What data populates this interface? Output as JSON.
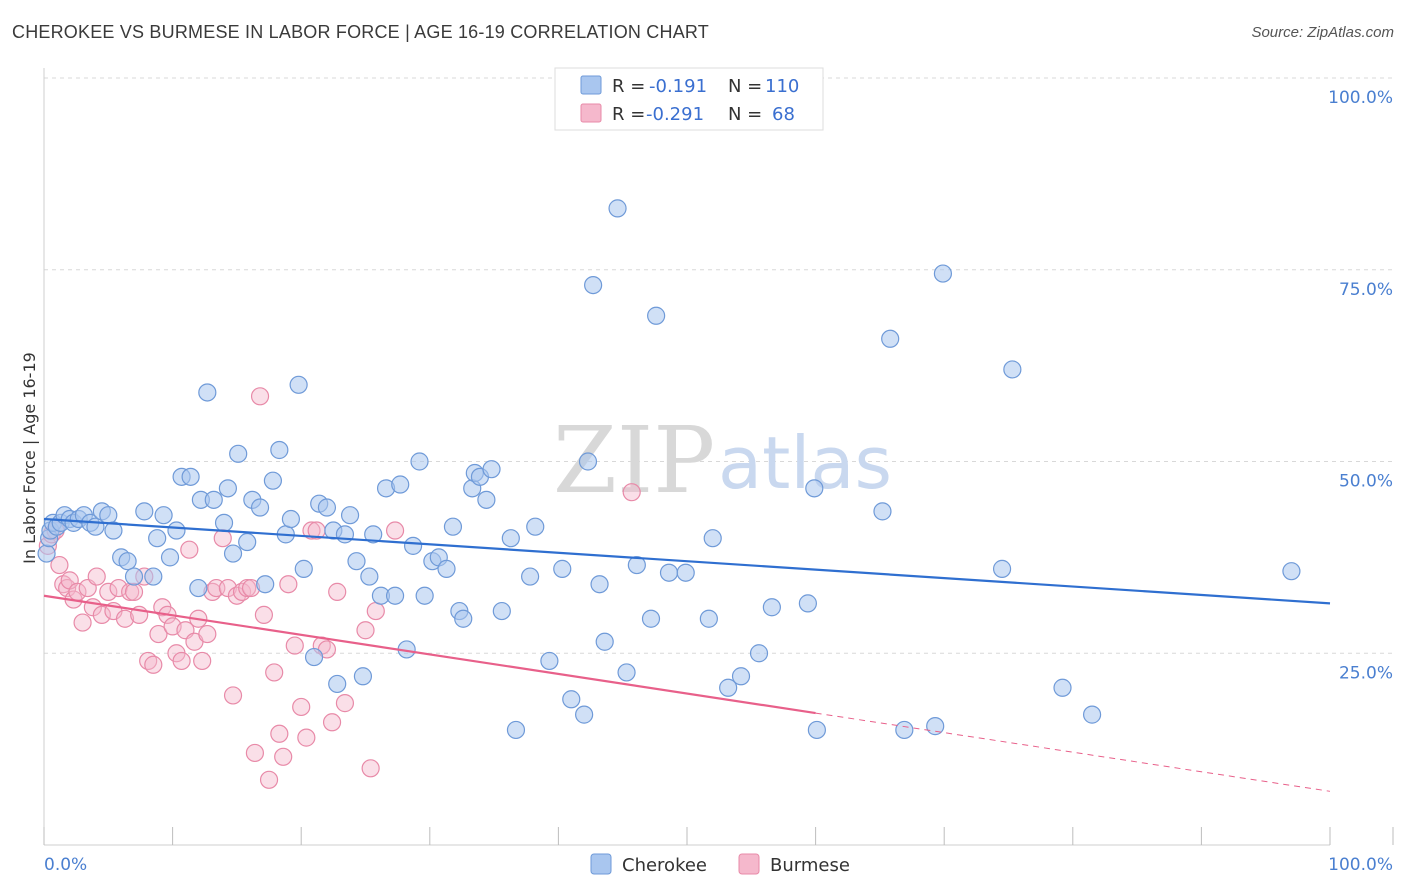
{
  "title": "CHEROKEE VS BURMESE IN LABOR FORCE | AGE 16-19 CORRELATION CHART",
  "source": "Source: ZipAtlas.com",
  "watermark": {
    "zip": "ZIP",
    "atlas": "atlas"
  },
  "legend_top": [
    {
      "r_label": "R =",
      "r_value": "-0.191",
      "n_label": "N =",
      "n_value": "110"
    },
    {
      "r_label": "R =",
      "r_value": "-0.291",
      "n_label": "N =",
      "n_value": "68"
    }
  ],
  "legend_bottom": [
    "Cherokee",
    "Burmese"
  ],
  "colors": {
    "cherokee_fill": "#a9c6ef",
    "cherokee_stroke": "#6f9ad8",
    "cherokee_line": "#2f6fd0",
    "burmese_fill": "#f5b8cc",
    "burmese_stroke": "#e88aa8",
    "burmese_line": "#e8608a",
    "tick_text": "#4a7fd0",
    "grid": "#d8d8d8"
  },
  "chart_data": {
    "type": "scatter",
    "title": "CHEROKEE VS BURMESE IN LABOR FORCE | AGE 16-19 CORRELATION CHART",
    "xlabel": "",
    "ylabel": "In Labor Force | Age 16-19",
    "xlim": [
      0,
      100
    ],
    "ylim": [
      0,
      100
    ],
    "x_tick_labels": [
      "0.0%",
      "100.0%"
    ],
    "y_ticks": [
      25,
      50,
      75,
      100
    ],
    "y_tick_labels": [
      "25.0%",
      "50.0%",
      "75.0%",
      "100.0%"
    ],
    "grid": true,
    "legend_position": "top-center",
    "series": [
      {
        "name": "Cherokee",
        "r": -0.191,
        "n": 110,
        "trend": {
          "x": [
            0,
            100
          ],
          "y": [
            42.5,
            31.5
          ]
        },
        "points": [
          [
            0.2,
            38
          ],
          [
            0.4,
            40
          ],
          [
            0.5,
            41
          ],
          [
            0.7,
            42
          ],
          [
            1.0,
            41.5
          ],
          [
            1.3,
            42
          ],
          [
            1.6,
            43
          ],
          [
            2.0,
            42.5
          ],
          [
            2.3,
            42
          ],
          [
            2.7,
            42.5
          ],
          [
            3.1,
            43
          ],
          [
            3.6,
            42
          ],
          [
            4.0,
            41.5
          ],
          [
            4.5,
            43.5
          ],
          [
            5.0,
            43
          ],
          [
            5.4,
            41
          ],
          [
            6.0,
            37.5
          ],
          [
            6.5,
            37
          ],
          [
            7.0,
            35
          ],
          [
            7.8,
            43.5
          ],
          [
            8.5,
            35
          ],
          [
            8.8,
            40
          ],
          [
            9.3,
            43
          ],
          [
            9.8,
            37.5
          ],
          [
            10.3,
            41
          ],
          [
            10.7,
            48
          ],
          [
            11.4,
            48
          ],
          [
            12.0,
            33.5
          ],
          [
            12.2,
            45
          ],
          [
            12.7,
            59
          ],
          [
            13.2,
            45
          ],
          [
            14.0,
            42
          ],
          [
            14.3,
            46.5
          ],
          [
            14.7,
            38
          ],
          [
            15.1,
            51
          ],
          [
            15.8,
            39.5
          ],
          [
            16.2,
            45
          ],
          [
            16.8,
            44
          ],
          [
            17.2,
            34
          ],
          [
            17.8,
            47.5
          ],
          [
            18.3,
            51.5
          ],
          [
            18.8,
            40.5
          ],
          [
            19.2,
            42.5
          ],
          [
            19.8,
            60
          ],
          [
            20.2,
            36
          ],
          [
            21.0,
            24.5
          ],
          [
            21.4,
            44.5
          ],
          [
            22.0,
            44
          ],
          [
            22.5,
            41
          ],
          [
            22.8,
            21
          ],
          [
            23.4,
            40.5
          ],
          [
            23.8,
            43
          ],
          [
            24.3,
            37
          ],
          [
            24.8,
            22
          ],
          [
            25.3,
            35
          ],
          [
            25.6,
            40.5
          ],
          [
            26.2,
            32.5
          ],
          [
            26.6,
            46.5
          ],
          [
            27.3,
            32.5
          ],
          [
            27.7,
            47
          ],
          [
            28.2,
            25.5
          ],
          [
            28.7,
            39
          ],
          [
            29.2,
            50
          ],
          [
            29.6,
            32.5
          ],
          [
            30.2,
            37
          ],
          [
            30.7,
            37.5
          ],
          [
            31.3,
            36
          ],
          [
            31.8,
            41.5
          ],
          [
            32.3,
            30.5
          ],
          [
            32.6,
            29.5
          ],
          [
            33.3,
            46.5
          ],
          [
            33.5,
            48.5
          ],
          [
            33.9,
            48
          ],
          [
            34.4,
            45
          ],
          [
            34.8,
            49
          ],
          [
            35.6,
            30.5
          ],
          [
            36.3,
            40
          ],
          [
            36.7,
            15
          ],
          [
            37.8,
            35
          ],
          [
            38.2,
            41.5
          ],
          [
            39.3,
            24
          ],
          [
            40.3,
            36
          ],
          [
            41.0,
            19
          ],
          [
            42.0,
            17
          ],
          [
            42.3,
            50
          ],
          [
            42.7,
            73
          ],
          [
            43.2,
            34
          ],
          [
            43.6,
            26.5
          ],
          [
            44.6,
            83
          ],
          [
            45.3,
            22.5
          ],
          [
            46.1,
            36.5
          ],
          [
            47.2,
            29.5
          ],
          [
            47.6,
            69
          ],
          [
            48.6,
            35.5
          ],
          [
            49.9,
            35.5
          ],
          [
            51.7,
            29.5
          ],
          [
            52.0,
            40
          ],
          [
            53.2,
            20.5
          ],
          [
            54.2,
            22
          ],
          [
            55.6,
            25
          ],
          [
            56.6,
            31
          ],
          [
            59.4,
            31.5
          ],
          [
            59.9,
            46.5
          ],
          [
            60.1,
            15
          ],
          [
            65.2,
            43.5
          ],
          [
            65.8,
            66
          ],
          [
            66.9,
            15
          ],
          [
            69.3,
            15.5
          ],
          [
            69.9,
            74.5
          ],
          [
            74.5,
            36
          ],
          [
            75.3,
            62
          ],
          [
            79.2,
            20.5
          ],
          [
            81.5,
            17
          ],
          [
            97.0,
            35.7
          ]
        ]
      },
      {
        "name": "Burmese",
        "r": -0.291,
        "n": 68,
        "trend": {
          "x": [
            0,
            60
          ],
          "y": [
            32.5,
            17.2
          ]
        },
        "trend_dashed": {
          "x": [
            60,
            100
          ],
          "y": [
            17.2,
            7
          ]
        },
        "points": [
          [
            0.3,
            39
          ],
          [
            0.6,
            40.5
          ],
          [
            0.9,
            41
          ],
          [
            1.2,
            36.5
          ],
          [
            1.5,
            34
          ],
          [
            1.8,
            33.5
          ],
          [
            2.0,
            34.5
          ],
          [
            2.3,
            32
          ],
          [
            2.6,
            33
          ],
          [
            3.0,
            29
          ],
          [
            3.4,
            33.5
          ],
          [
            3.8,
            31
          ],
          [
            4.1,
            35
          ],
          [
            4.5,
            30
          ],
          [
            5.0,
            33
          ],
          [
            5.4,
            30.5
          ],
          [
            5.8,
            33.5
          ],
          [
            6.3,
            29.5
          ],
          [
            6.7,
            33
          ],
          [
            7.0,
            33
          ],
          [
            7.4,
            30
          ],
          [
            7.8,
            35
          ],
          [
            8.1,
            24
          ],
          [
            8.5,
            23.5
          ],
          [
            8.9,
            27.5
          ],
          [
            9.2,
            31
          ],
          [
            9.6,
            30
          ],
          [
            10.0,
            28.5
          ],
          [
            10.3,
            25
          ],
          [
            10.7,
            24
          ],
          [
            11.0,
            28
          ],
          [
            11.3,
            38.5
          ],
          [
            11.7,
            26.5
          ],
          [
            12.0,
            29.5
          ],
          [
            12.3,
            24
          ],
          [
            12.7,
            27.5
          ],
          [
            13.1,
            33
          ],
          [
            13.4,
            33.5
          ],
          [
            13.9,
            40
          ],
          [
            14.3,
            33.5
          ],
          [
            14.7,
            19.5
          ],
          [
            15.0,
            32.5
          ],
          [
            15.4,
            33
          ],
          [
            15.8,
            33.5
          ],
          [
            16.1,
            33.5
          ],
          [
            16.4,
            12
          ],
          [
            16.8,
            58.5
          ],
          [
            17.1,
            30
          ],
          [
            17.5,
            8.5
          ],
          [
            17.9,
            22.5
          ],
          [
            18.3,
            14.5
          ],
          [
            18.6,
            11.5
          ],
          [
            19.0,
            34
          ],
          [
            19.5,
            26
          ],
          [
            20.0,
            18
          ],
          [
            20.4,
            14
          ],
          [
            20.8,
            41
          ],
          [
            21.2,
            41
          ],
          [
            21.6,
            26
          ],
          [
            22.0,
            25.5
          ],
          [
            22.4,
            16
          ],
          [
            22.8,
            33
          ],
          [
            23.4,
            18.5
          ],
          [
            25.0,
            28
          ],
          [
            25.4,
            10
          ],
          [
            25.8,
            30.5
          ],
          [
            27.3,
            41
          ],
          [
            45.7,
            46
          ]
        ]
      }
    ]
  }
}
